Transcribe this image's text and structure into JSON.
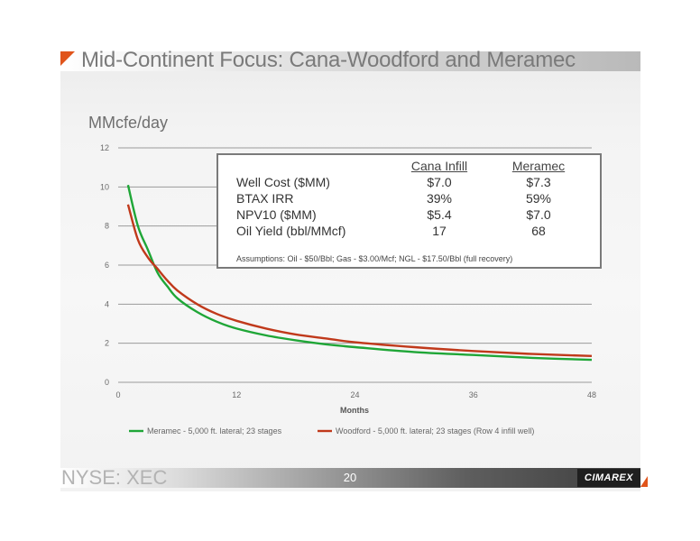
{
  "slide": {
    "title": "Mid-Continent Focus: Cana-Woodford and Meramec",
    "y_unit_label": "MMcfe/day",
    "ticker": "NYSE: XEC",
    "page_number": "20",
    "logo_text": "CIMAREX",
    "accent_color": "#e0541b"
  },
  "table": {
    "headers": [
      "Cana Infill",
      "Meramec"
    ],
    "rows": [
      {
        "label": "Well Cost ($MM)",
        "cana": "$7.0",
        "meramec": "$7.3"
      },
      {
        "label": "BTAX IRR",
        "cana": "39%",
        "meramec": "59%"
      },
      {
        "label": "NPV10 ($MM)",
        "cana": "$5.4",
        "meramec": "$7.0"
      },
      {
        "label": "Oil Yield (bbl/MMcf)",
        "cana": "17",
        "meramec": "68"
      }
    ],
    "assumptions": "Assumptions:  Oil - $50/Bbl; Gas - $3.00/Mcf; NGL - $17.50/Bbl (full recovery)"
  },
  "chart_data": {
    "type": "line",
    "xlabel": "Months",
    "ylabel": "MMcfe/day",
    "xlim": [
      0,
      48
    ],
    "ylim": [
      0,
      12
    ],
    "x_ticks": [
      0,
      12,
      24,
      36,
      48
    ],
    "y_ticks": [
      0,
      2,
      4,
      6,
      8,
      10,
      12
    ],
    "grid": "horizontal",
    "legend_position": "bottom",
    "series": [
      {
        "name": "Meramec - 5,000 ft. lateral; 23 stages",
        "color": "#1fa637",
        "x": [
          1,
          2,
          3,
          4,
          5,
          6,
          8,
          10,
          12,
          15,
          18,
          21,
          24,
          30,
          36,
          42,
          48
        ],
        "y": [
          10.1,
          8.0,
          6.8,
          5.6,
          4.9,
          4.3,
          3.6,
          3.1,
          2.75,
          2.4,
          2.15,
          1.95,
          1.8,
          1.55,
          1.4,
          1.25,
          1.15
        ]
      },
      {
        "name": "Woodford - 5,000 ft. lateral; 23 stages (Row 4 infill well)",
        "color": "#c0391b",
        "x": [
          1,
          2,
          3,
          4,
          5,
          6,
          8,
          10,
          12,
          15,
          18,
          21,
          24,
          30,
          36,
          42,
          48
        ],
        "y": [
          9.1,
          7.3,
          6.4,
          5.8,
          5.2,
          4.7,
          4.0,
          3.5,
          3.15,
          2.75,
          2.45,
          2.25,
          2.05,
          1.8,
          1.6,
          1.45,
          1.35
        ]
      }
    ]
  }
}
